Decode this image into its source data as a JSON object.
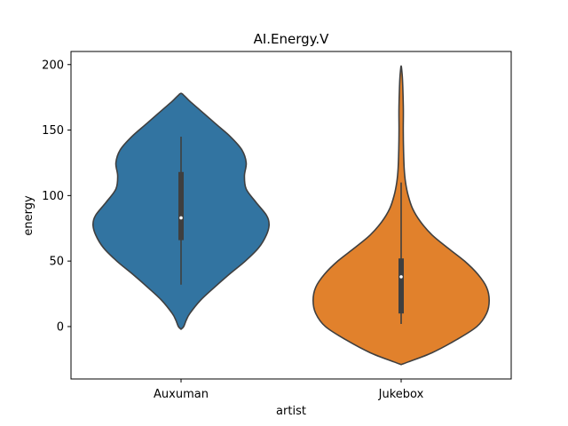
{
  "chart_data": {
    "type": "violin",
    "title": "AI.Energy.V",
    "xlabel": "artist",
    "ylabel": "energy",
    "categories": [
      "Auxuman",
      "Jukebox"
    ],
    "ylim": [
      -40,
      210
    ],
    "yticks": [
      0,
      50,
      100,
      150,
      200
    ],
    "grid": false,
    "series": [
      {
        "category": "Auxuman",
        "color": "#3274a1",
        "median": 83,
        "q1": 66,
        "q3": 118,
        "whisker_low": 32,
        "whisker_high": 145,
        "density": [
          [
            -2,
            0.0
          ],
          [
            0,
            0.03
          ],
          [
            5,
            0.06
          ],
          [
            10,
            0.1
          ],
          [
            20,
            0.22
          ],
          [
            30,
            0.38
          ],
          [
            40,
            0.55
          ],
          [
            50,
            0.73
          ],
          [
            60,
            0.88
          ],
          [
            70,
            0.97
          ],
          [
            78,
            1.0
          ],
          [
            85,
            0.97
          ],
          [
            95,
            0.85
          ],
          [
            105,
            0.74
          ],
          [
            115,
            0.72
          ],
          [
            125,
            0.74
          ],
          [
            135,
            0.69
          ],
          [
            145,
            0.56
          ],
          [
            155,
            0.39
          ],
          [
            165,
            0.22
          ],
          [
            172,
            0.1
          ],
          [
            176,
            0.04
          ],
          [
            178,
            0.0
          ]
        ]
      },
      {
        "category": "Jukebox",
        "color": "#e1812c",
        "median": 38,
        "q1": 10,
        "q3": 52,
        "whisker_low": 2,
        "whisker_high": 110,
        "density": [
          [
            -29,
            0.0
          ],
          [
            -27,
            0.08
          ],
          [
            -20,
            0.35
          ],
          [
            -10,
            0.63
          ],
          [
            0,
            0.86
          ],
          [
            10,
            0.97
          ],
          [
            20,
            1.0
          ],
          [
            30,
            0.97
          ],
          [
            40,
            0.87
          ],
          [
            50,
            0.72
          ],
          [
            60,
            0.53
          ],
          [
            70,
            0.35
          ],
          [
            80,
            0.22
          ],
          [
            90,
            0.13
          ],
          [
            100,
            0.08
          ],
          [
            110,
            0.05
          ],
          [
            120,
            0.035
          ],
          [
            135,
            0.027
          ],
          [
            150,
            0.024
          ],
          [
            165,
            0.025
          ],
          [
            180,
            0.02
          ],
          [
            190,
            0.014
          ],
          [
            197,
            0.005
          ],
          [
            199,
            0.0
          ]
        ]
      }
    ]
  }
}
